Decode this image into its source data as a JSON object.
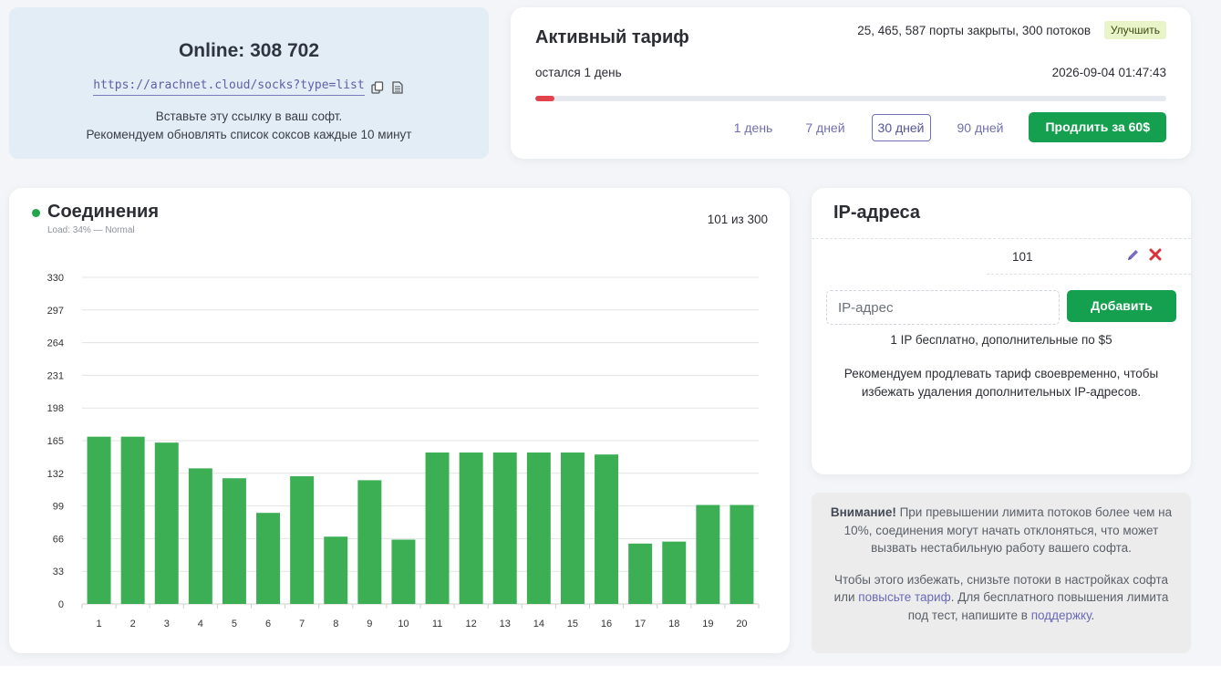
{
  "online": {
    "title": "Online: 308 702",
    "link": "https://arachnet.cloud/socks?type=list",
    "hint_line1": "Вставьте эту ссылку в ваш софт.",
    "hint_line2": "Рекомендуем обновлять список соксов каждые 10 минут",
    "copy_icon": "copy-icon",
    "doc_icon": "document-icon"
  },
  "tariff": {
    "title": "Активный тариф",
    "ports_text": "25, 465, 587 порты закрыты, 300 потоков",
    "upgrade_label": "Улучшить",
    "remaining": "остался 1 день",
    "expires": "2026-09-04 01:47:43",
    "progress_fraction": 0.03,
    "periods": [
      "1 день",
      "7 дней",
      "30 дней",
      "90 дней"
    ],
    "active_period_index": 2,
    "extend_label": "Продлить за 60$"
  },
  "connections": {
    "title": "Соединения",
    "subtitle": "Load: 34% — Normal",
    "count": "101 из 300",
    "status_color": "#22a54b"
  },
  "ip": {
    "title": "IP-адреса",
    "entries": [
      "101"
    ],
    "input_placeholder": "IP-адрес",
    "add_label": "Добавить",
    "note": "1 IP бесплатно, дополнительные по $5",
    "recommend": "Рекомендуем продлевать тариф своевременно, чтобы избежать удаления дополнительных IP-адресов."
  },
  "warning": {
    "bold": "Внимание!",
    "text1": " При превышении лимита потоков более чем на 10%, соединения могут начать отклоняться, что может вызвать нестабильную работу вашего софта.",
    "text2_pre": "Чтобы этого избежать, снизьте потоки в настройках софта или ",
    "link1": "повысьте тариф",
    "text2_mid": ". Для бесплатного повышения лимита под тест, напишите в ",
    "link2": "поддержку",
    "text2_post": "."
  },
  "colors": {
    "accent_green": "#15a04f",
    "bar_green": "#3caf55",
    "progress_red": "#e0434b",
    "link_purple": "#6f6fb0"
  },
  "chart_data": {
    "type": "bar",
    "categories": [
      "1",
      "2",
      "3",
      "4",
      "5",
      "6",
      "7",
      "8",
      "9",
      "10",
      "11",
      "12",
      "13",
      "14",
      "15",
      "16",
      "17",
      "18",
      "19",
      "20"
    ],
    "values": [
      169,
      169,
      163,
      137,
      127,
      92,
      129,
      68,
      125,
      65,
      153,
      153,
      153,
      153,
      153,
      151,
      61,
      63,
      100,
      100
    ],
    "yticks": [
      0,
      33,
      66,
      99,
      132,
      165,
      198,
      231,
      264,
      297,
      330
    ],
    "ylim": [
      0,
      330
    ],
    "grid": true,
    "title": "",
    "xlabel": "",
    "ylabel": ""
  }
}
